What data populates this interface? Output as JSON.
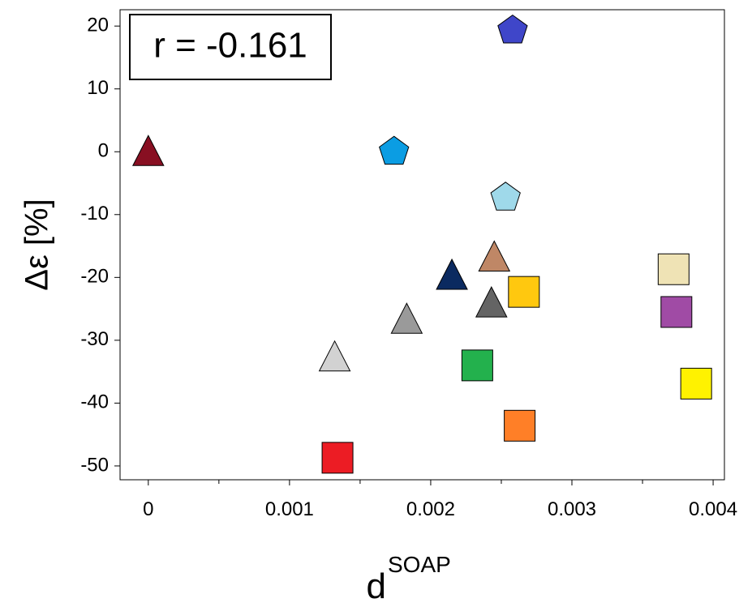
{
  "chart_data": {
    "type": "scatter",
    "annotation": "r = -0.161",
    "xlabel": "d",
    "xlabel_sup": "SOAP",
    "ylabel": "Δε [%]",
    "x": [
      0.00258,
      0,
      0.00174,
      0.00253,
      0.00245,
      0.00215,
      0.00266,
      0.00243,
      0.00183,
      0.00372,
      0.00374,
      0.00132,
      0.00233,
      0.00388,
      0.00263,
      0.00134
    ],
    "y": [
      19.3,
      0,
      0,
      -7.3,
      -16.8,
      -19.7,
      -22.3,
      -24.1,
      -26.7,
      -18.7,
      -25.5,
      -32.7,
      -34,
      -36.9,
      -43.6,
      -48.7
    ],
    "markers": [
      "pentagon",
      "triangle",
      "pentagon",
      "pentagon",
      "triangle",
      "triangle",
      "square",
      "triangle",
      "triangle",
      "square",
      "square",
      "triangle",
      "square",
      "square",
      "square",
      "square"
    ],
    "colors": [
      "#3f46c9",
      "#880f22",
      "#0b9de3",
      "#9fd9ea",
      "#bf8766",
      "#0b2a60",
      "#ffc80f",
      "#646464",
      "#9a9a9a",
      "#efe3b5",
      "#a04ba5",
      "#d2d2d2",
      "#23b14d",
      "#fff200",
      "#ff7f27",
      "#ec1c24"
    ],
    "xlim": [
      -0.0002,
      0.00408
    ],
    "ylim": [
      -52.2,
      22.6
    ],
    "xticks": [
      0,
      0.001,
      0.002,
      0.003,
      0.004
    ],
    "xticks_minor": [
      0.0005,
      0.0015,
      0.0025,
      0.0035
    ],
    "yticks": [
      -50,
      -40,
      -30,
      -20,
      -10,
      0,
      10,
      20
    ]
  }
}
